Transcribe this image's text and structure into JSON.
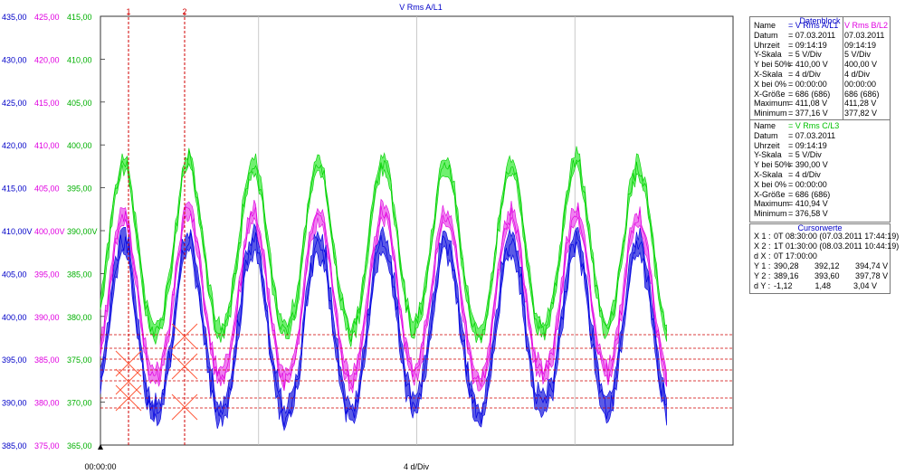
{
  "chart_data": {
    "type": "line",
    "title": "V Rms A/L1",
    "x_start_label": "00:00:00",
    "x_div_label": "4 d/Div",
    "x_divisions": 4,
    "axes": [
      {
        "color": "#0000c8",
        "ticks": [
          "435,00",
          "430,00",
          "425,00",
          "420,00",
          "415,00",
          "410,00V",
          "405,00",
          "400,00",
          "395,00",
          "390,00",
          "385,00"
        ]
      },
      {
        "color": "#e000e0",
        "ticks": [
          "425,00",
          "420,00",
          "415,00",
          "410,00",
          "405,00",
          "400,00V",
          "395,00",
          "390,00",
          "385,00",
          "380,00",
          "375,00"
        ]
      },
      {
        "color": "#00b000",
        "ticks": [
          "415,00",
          "410,00",
          "405,00",
          "400,00",
          "395,00",
          "390,00V",
          "385,00",
          "380,00",
          "375,00",
          "370,00",
          "365,00"
        ]
      }
    ],
    "series": [
      {
        "name": "V Rms A/L1",
        "color": "#0000e0",
        "fill": "#5a5ae6",
        "axis": 0
      },
      {
        "name": "V Rms B/L2",
        "color": "#e000e0",
        "fill": "#f080f0",
        "axis": 1
      },
      {
        "name": "V Rms C/L3",
        "color": "#00d000",
        "fill": "#70f070",
        "axis": 2
      }
    ],
    "cursors": [
      {
        "label": "1",
        "color": "#d00000"
      },
      {
        "label": "2",
        "color": "#d00000"
      }
    ]
  },
  "datenblock": {
    "title": "Datenblock",
    "labels": [
      "Name",
      "Datum",
      "Uhrzeit",
      "Y-Skala",
      "Y bei 50%",
      "X-Skala",
      "X bei 0%",
      "X-Größe",
      "Maximum",
      "Minimum"
    ],
    "block1": {
      "col1": [
        "= V Rms A/L1",
        "= 07.03.2011",
        "= 09:14:19",
        "=      5   V/Div",
        "= 410,00 V",
        "=      4   d/Div",
        "= 00:00:00",
        "= 686 (686)",
        "= 411,08 V",
        "= 377,16 V"
      ],
      "col2": [
        "V Rms B/L2",
        "07.03.2011",
        "09:14:19",
        "     5   V/Div",
        "400,00 V",
        "     4   d/Div",
        "00:00:00",
        "686 (686)",
        "411,28 V",
        "377,82 V"
      ]
    },
    "block2": {
      "col1": [
        "= V Rms C/L3",
        "= 07.03.2011",
        "= 09:14:19",
        "=      5   V/Div",
        "= 390,00 V",
        "=      4   d/Div",
        "= 00:00:00",
        "= 686 (686)",
        "= 410,94 V",
        "= 376,58 V"
      ]
    }
  },
  "cursorwerte": {
    "title": "Cursorwerte",
    "rows": [
      {
        "label": "X 1 :",
        "value": "0T 08:30:00 (07.03.2011 17:44:19)"
      },
      {
        "label": "X 2 :",
        "value": "1T 01:30:00 (08.03.2011 10:44:19)"
      },
      {
        "label": "d X :",
        "value": "0T 17:00:00"
      },
      {
        "label": "Y 1 :",
        "value": "390,28       392,12       394,74 V"
      },
      {
        "label": "Y 2 :",
        "value": "389,16       393,60       397,78 V"
      },
      {
        "label": "d Y :",
        "value": "-1,12          1,48          3,04 V"
      }
    ]
  }
}
